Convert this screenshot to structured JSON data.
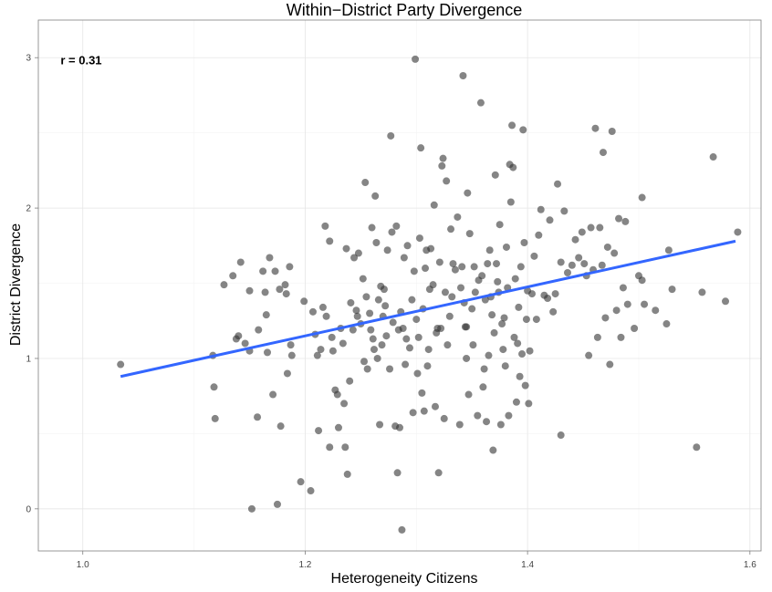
{
  "chart_data": {
    "type": "scatter",
    "title": "Within−District Party Divergence",
    "xlabel": "Heterogeneity Citizens",
    "ylabel": "District Divergence",
    "xlim": [
      0.96,
      1.61
    ],
    "ylim": [
      -0.28,
      3.25
    ],
    "x_ticks": [
      1.0,
      1.2,
      1.4,
      1.6
    ],
    "x_tick_labels": [
      "1.0",
      "1.2",
      "1.4",
      "1.6"
    ],
    "y_ticks": [
      0,
      1,
      2,
      3
    ],
    "y_tick_labels": [
      "0",
      "1",
      "2",
      "3"
    ],
    "grid": true,
    "legend": "none",
    "annotation": {
      "text": "r = 0.31",
      "x": 0.98,
      "y": 2.98
    },
    "fit_line": {
      "x": [
        1.034,
        1.587
      ],
      "y": [
        0.88,
        1.78
      ],
      "color": "#3366ff"
    },
    "point_color": "#333333",
    "points": [
      [
        1.034,
        0.96
      ],
      [
        1.117,
        1.02
      ],
      [
        1.118,
        0.81
      ],
      [
        1.119,
        0.6
      ],
      [
        1.127,
        1.49
      ],
      [
        1.135,
        1.55
      ],
      [
        1.138,
        1.13
      ],
      [
        1.14,
        1.15
      ],
      [
        1.142,
        1.64
      ],
      [
        1.146,
        1.1
      ],
      [
        1.15,
        1.05
      ],
      [
        1.15,
        1.45
      ],
      [
        1.152,
        0.0
      ],
      [
        1.157,
        0.61
      ],
      [
        1.158,
        1.19
      ],
      [
        1.162,
        1.58
      ],
      [
        1.164,
        1.44
      ],
      [
        1.165,
        1.29
      ],
      [
        1.166,
        1.04
      ],
      [
        1.168,
        1.67
      ],
      [
        1.171,
        0.76
      ],
      [
        1.173,
        1.58
      ],
      [
        1.175,
        0.03
      ],
      [
        1.177,
        1.46
      ],
      [
        1.178,
        0.55
      ],
      [
        1.182,
        1.49
      ],
      [
        1.183,
        1.43
      ],
      [
        1.184,
        0.9
      ],
      [
        1.186,
        1.61
      ],
      [
        1.187,
        1.09
      ],
      [
        1.188,
        1.02
      ],
      [
        1.196,
        0.18
      ],
      [
        1.199,
        1.38
      ],
      [
        1.205,
        0.12
      ],
      [
        1.207,
        1.31
      ],
      [
        1.209,
        1.16
      ],
      [
        1.211,
        1.02
      ],
      [
        1.212,
        0.52
      ],
      [
        1.214,
        1.06
      ],
      [
        1.216,
        1.34
      ],
      [
        1.218,
        1.88
      ],
      [
        1.219,
        1.28
      ],
      [
        1.222,
        1.78
      ],
      [
        1.222,
        0.41
      ],
      [
        1.224,
        1.14
      ],
      [
        1.225,
        1.05
      ],
      [
        1.227,
        0.79
      ],
      [
        1.229,
        0.76
      ],
      [
        1.23,
        0.54
      ],
      [
        1.232,
        1.2
      ],
      [
        1.234,
        1.1
      ],
      [
        1.235,
        0.7
      ],
      [
        1.236,
        0.41
      ],
      [
        1.237,
        1.73
      ],
      [
        1.238,
        0.23
      ],
      [
        1.24,
        0.85
      ],
      [
        1.241,
        1.37
      ],
      [
        1.243,
        1.19
      ],
      [
        1.244,
        1.67
      ],
      [
        1.246,
        1.32
      ],
      [
        1.247,
        1.28
      ],
      [
        1.248,
        1.7
      ],
      [
        1.25,
        1.23
      ],
      [
        1.252,
        1.53
      ],
      [
        1.253,
        0.98
      ],
      [
        1.254,
        2.17
      ],
      [
        1.255,
        1.41
      ],
      [
        1.256,
        0.93
      ],
      [
        1.258,
        1.3
      ],
      [
        1.259,
        1.19
      ],
      [
        1.26,
        1.87
      ],
      [
        1.261,
        1.13
      ],
      [
        1.262,
        1.06
      ],
      [
        1.263,
        2.08
      ],
      [
        1.264,
        1.77
      ],
      [
        1.265,
        1.0
      ],
      [
        1.266,
        1.39
      ],
      [
        1.267,
        0.56
      ],
      [
        1.268,
        1.48
      ],
      [
        1.269,
        1.09
      ],
      [
        1.27,
        1.28
      ],
      [
        1.271,
        1.46
      ],
      [
        1.272,
        1.35
      ],
      [
        1.273,
        1.15
      ],
      [
        1.274,
        1.72
      ],
      [
        1.276,
        0.93
      ],
      [
        1.277,
        2.48
      ],
      [
        1.278,
        1.84
      ],
      [
        1.279,
        1.24
      ],
      [
        1.281,
        0.55
      ],
      [
        1.282,
        1.88
      ],
      [
        1.283,
        0.24
      ],
      [
        1.284,
        1.19
      ],
      [
        1.285,
        0.54
      ],
      [
        1.286,
        1.31
      ],
      [
        1.287,
        -0.14
      ],
      [
        1.288,
        1.2
      ],
      [
        1.289,
        1.67
      ],
      [
        1.29,
        0.96
      ],
      [
        1.291,
        1.13
      ],
      [
        1.292,
        1.75
      ],
      [
        1.294,
        1.07
      ],
      [
        1.296,
        1.39
      ],
      [
        1.297,
        0.64
      ],
      [
        1.298,
        1.58
      ],
      [
        1.299,
        2.99
      ],
      [
        1.3,
        1.26
      ],
      [
        1.301,
        0.9
      ],
      [
        1.302,
        1.14
      ],
      [
        1.303,
        1.8
      ],
      [
        1.304,
        2.4
      ],
      [
        1.305,
        0.77
      ],
      [
        1.306,
        1.33
      ],
      [
        1.307,
        0.65
      ],
      [
        1.308,
        1.6
      ],
      [
        1.309,
        1.72
      ],
      [
        1.31,
        0.95
      ],
      [
        1.311,
        1.06
      ],
      [
        1.312,
        1.46
      ],
      [
        1.313,
        1.73
      ],
      [
        1.315,
        1.49
      ],
      [
        1.316,
        2.02
      ],
      [
        1.317,
        0.68
      ],
      [
        1.318,
        1.17
      ],
      [
        1.319,
        1.2
      ],
      [
        1.32,
        0.24
      ],
      [
        1.321,
        1.64
      ],
      [
        1.322,
        1.2
      ],
      [
        1.323,
        2.28
      ],
      [
        1.324,
        2.33
      ],
      [
        1.325,
        0.6
      ],
      [
        1.326,
        1.44
      ],
      [
        1.327,
        2.18
      ],
      [
        1.328,
        1.09
      ],
      [
        1.33,
        1.28
      ],
      [
        1.331,
        1.86
      ],
      [
        1.332,
        1.41
      ],
      [
        1.333,
        1.63
      ],
      [
        1.335,
        1.59
      ],
      [
        1.337,
        1.94
      ],
      [
        1.339,
        0.56
      ],
      [
        1.34,
        1.47
      ],
      [
        1.341,
        1.61
      ],
      [
        1.342,
        2.88
      ],
      [
        1.343,
        1.37
      ],
      [
        1.344,
        1.21
      ],
      [
        1.345,
        1.0
      ],
      [
        1.346,
        2.1
      ],
      [
        1.347,
        0.76
      ],
      [
        1.348,
        1.83
      ],
      [
        1.35,
        1.33
      ],
      [
        1.351,
        1.09
      ],
      [
        1.352,
        1.61
      ],
      [
        1.353,
        1.44
      ],
      [
        1.355,
        0.62
      ],
      [
        1.356,
        1.52
      ],
      [
        1.358,
        2.7
      ],
      [
        1.359,
        1.55
      ],
      [
        1.36,
        0.81
      ],
      [
        1.361,
        0.93
      ],
      [
        1.362,
        1.39
      ],
      [
        1.363,
        0.58
      ],
      [
        1.364,
        1.63
      ],
      [
        1.365,
        1.02
      ],
      [
        1.366,
        1.72
      ],
      [
        1.367,
        1.41
      ],
      [
        1.368,
        1.29
      ],
      [
        1.369,
        0.39
      ],
      [
        1.37,
        1.17
      ],
      [
        1.371,
        2.22
      ],
      [
        1.372,
        1.63
      ],
      [
        1.373,
        1.51
      ],
      [
        1.374,
        1.44
      ],
      [
        1.375,
        1.89
      ],
      [
        1.376,
        0.56
      ],
      [
        1.377,
        1.23
      ],
      [
        1.378,
        1.06
      ],
      [
        1.379,
        1.27
      ],
      [
        1.38,
        0.95
      ],
      [
        1.381,
        1.74
      ],
      [
        1.382,
        1.47
      ],
      [
        1.383,
        0.62
      ],
      [
        1.384,
        2.29
      ],
      [
        1.385,
        2.04
      ],
      [
        1.386,
        2.55
      ],
      [
        1.387,
        2.27
      ],
      [
        1.388,
        1.14
      ],
      [
        1.389,
        1.53
      ],
      [
        1.39,
        0.71
      ],
      [
        1.391,
        1.1
      ],
      [
        1.392,
        1.34
      ],
      [
        1.393,
        0.88
      ],
      [
        1.394,
        1.61
      ],
      [
        1.395,
        1.03
      ],
      [
        1.396,
        2.52
      ],
      [
        1.397,
        1.77
      ],
      [
        1.398,
        0.82
      ],
      [
        1.399,
        1.26
      ],
      [
        1.4,
        1.45
      ],
      [
        1.401,
        0.7
      ],
      [
        1.402,
        1.05
      ],
      [
        1.404,
        1.43
      ],
      [
        1.406,
        1.68
      ],
      [
        1.408,
        1.26
      ],
      [
        1.41,
        1.82
      ],
      [
        1.412,
        1.99
      ],
      [
        1.415,
        1.42
      ],
      [
        1.418,
        1.4
      ],
      [
        1.42,
        1.92
      ],
      [
        1.423,
        1.31
      ],
      [
        1.425,
        1.43
      ],
      [
        1.427,
        2.16
      ],
      [
        1.43,
        1.64
      ],
      [
        1.433,
        1.98
      ],
      [
        1.436,
        1.57
      ],
      [
        1.44,
        1.62
      ],
      [
        1.443,
        1.79
      ],
      [
        1.446,
        1.67
      ],
      [
        1.449,
        1.84
      ],
      [
        1.451,
        1.63
      ],
      [
        1.453,
        1.55
      ],
      [
        1.455,
        1.02
      ],
      [
        1.457,
        1.87
      ],
      [
        1.459,
        1.59
      ],
      [
        1.461,
        2.53
      ],
      [
        1.463,
        1.14
      ],
      [
        1.465,
        1.87
      ],
      [
        1.467,
        1.62
      ],
      [
        1.468,
        2.37
      ],
      [
        1.47,
        1.27
      ],
      [
        1.472,
        1.74
      ],
      [
        1.474,
        0.96
      ],
      [
        1.476,
        2.51
      ],
      [
        1.478,
        1.7
      ],
      [
        1.48,
        1.32
      ],
      [
        1.482,
        1.93
      ],
      [
        1.484,
        1.14
      ],
      [
        1.486,
        1.47
      ],
      [
        1.488,
        1.91
      ],
      [
        1.49,
        1.36
      ],
      [
        1.496,
        1.2
      ],
      [
        1.5,
        1.55
      ],
      [
        1.503,
        1.52
      ],
      [
        1.505,
        1.36
      ],
      [
        1.503,
        2.07
      ],
      [
        1.515,
        1.32
      ],
      [
        1.525,
        1.23
      ],
      [
        1.527,
        1.72
      ],
      [
        1.53,
        1.46
      ],
      [
        1.552,
        0.41
      ],
      [
        1.557,
        1.44
      ],
      [
        1.567,
        2.34
      ],
      [
        1.578,
        1.38
      ],
      [
        1.589,
        1.84
      ],
      [
        1.43,
        0.49
      ],
      [
        1.345,
        1.21
      ]
    ]
  }
}
